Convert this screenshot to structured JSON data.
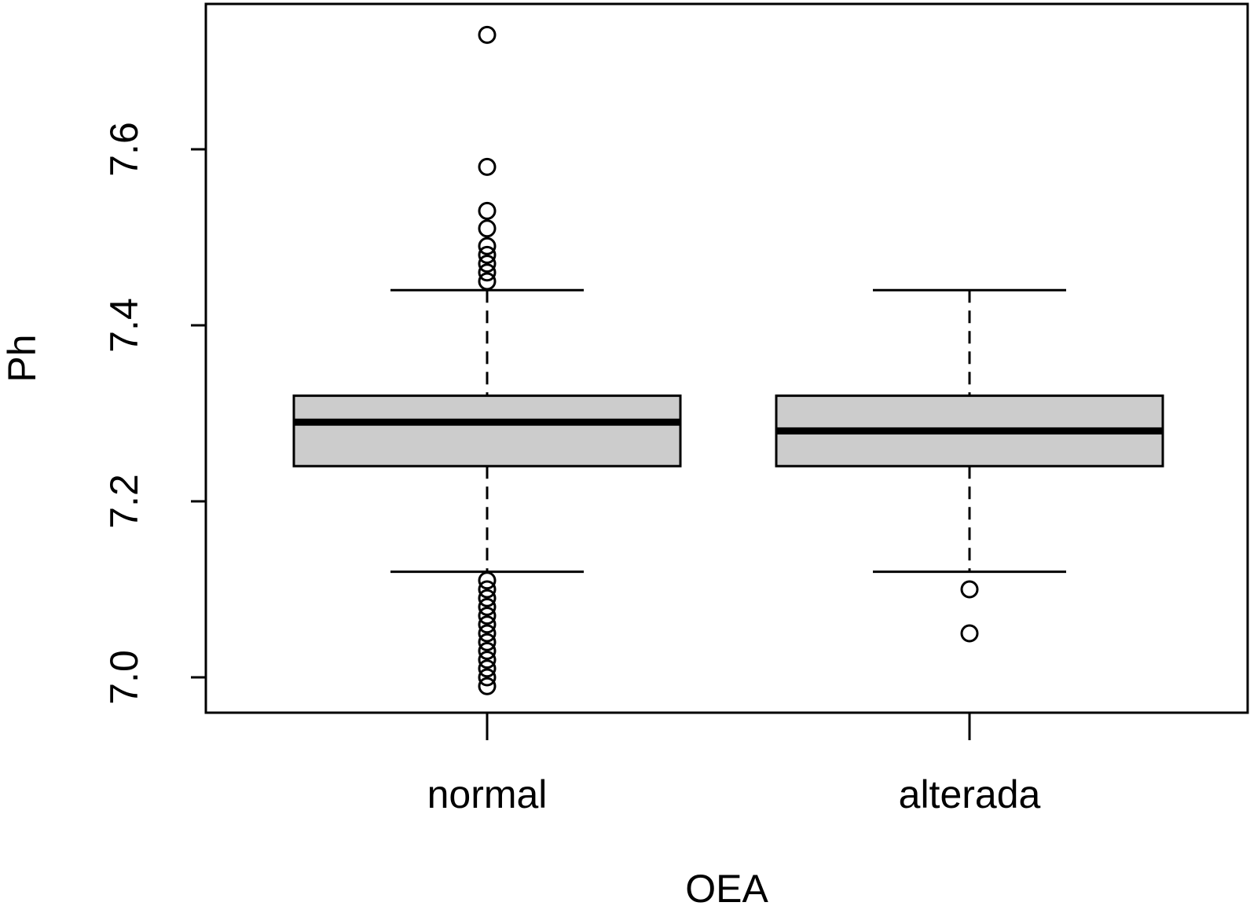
{
  "chart_data": {
    "type": "boxplot",
    "xlabel": "OEA",
    "ylabel": "Ph",
    "ylim": [
      6.975,
      7.78
    ],
    "yticks": [
      "7.0",
      "7.2",
      "7.4",
      "7.6"
    ],
    "categories": [
      "normal",
      "alterada"
    ],
    "boxes": [
      {
        "category": "normal",
        "whisker_low": 7.12,
        "q1": 7.24,
        "median": 7.29,
        "q3": 7.32,
        "whisker_high": 7.44,
        "outliers": [
          7.73,
          7.58,
          7.53,
          7.51,
          7.49,
          7.48,
          7.47,
          7.46,
          7.45,
          7.11,
          7.1,
          7.09,
          7.08,
          7.07,
          7.06,
          7.05,
          7.04,
          7.03,
          7.02,
          7.01,
          7.0,
          6.99
        ]
      },
      {
        "category": "alterada",
        "whisker_low": 7.12,
        "q1": 7.24,
        "median": 7.28,
        "q3": 7.32,
        "whisker_high": 7.44,
        "outliers": [
          7.1,
          7.05
        ]
      }
    ],
    "box_fill": "#cccccc",
    "line_color": "#000000"
  }
}
